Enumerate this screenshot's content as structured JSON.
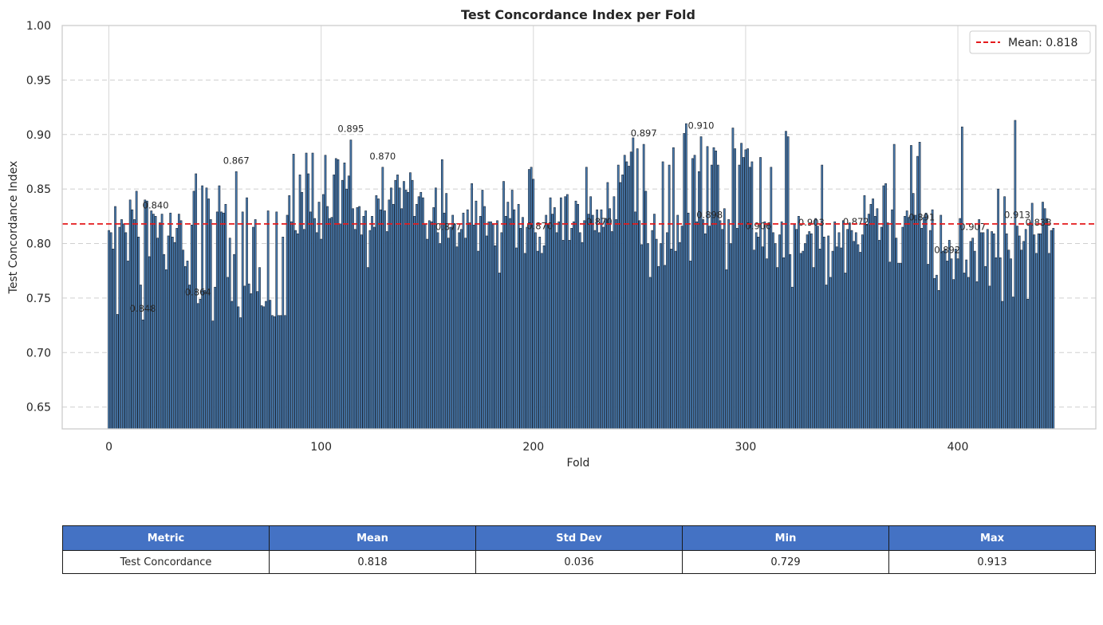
{
  "chart_data": {
    "type": "bar",
    "title": "Test Concordance Index per Fold",
    "xlabel": "Fold",
    "ylabel": "Test Concordance Index",
    "xlim": [
      -22,
      465
    ],
    "ylim": [
      0.63,
      1.0
    ],
    "xticks": [
      0,
      100,
      200,
      300,
      400
    ],
    "yticks": [
      0.65,
      0.7,
      0.75,
      0.8,
      0.85,
      0.9,
      0.95,
      1.0
    ],
    "grid": true,
    "legend_position": "top-right",
    "bar_color": "#4a7fb5",
    "bar_edge_color": "#1a2433",
    "mean_line": {
      "value": 0.818,
      "label": "Mean: 0.818",
      "color": "#e41a1c",
      "style": "dashed"
    },
    "folds": 442,
    "values": [
      0.812,
      0.81,
      0.795,
      0.834,
      0.735,
      0.815,
      0.822,
      0.818,
      0.81,
      0.784,
      0.84,
      0.831,
      0.822,
      0.848,
      0.806,
      0.762,
      0.73,
      0.84,
      0.839,
      0.788,
      0.83,
      0.827,
      0.825,
      0.805,
      0.819,
      0.827,
      0.79,
      0.776,
      0.807,
      0.828,
      0.806,
      0.801,
      0.814,
      0.827,
      0.821,
      0.794,
      0.779,
      0.784,
      0.762,
      0.817,
      0.848,
      0.864,
      0.745,
      0.749,
      0.853,
      0.757,
      0.851,
      0.841,
      0.822,
      0.729,
      0.76,
      0.829,
      0.853,
      0.829,
      0.828,
      0.836,
      0.769,
      0.805,
      0.747,
      0.79,
      0.866,
      0.742,
      0.732,
      0.829,
      0.761,
      0.842,
      0.763,
      0.754,
      0.815,
      0.822,
      0.756,
      0.778,
      0.743,
      0.742,
      0.747,
      0.83,
      0.748,
      0.734,
      0.733,
      0.829,
      0.734,
      0.734,
      0.806,
      0.734,
      0.826,
      0.844,
      0.82,
      0.882,
      0.812,
      0.809,
      0.863,
      0.847,
      0.813,
      0.883,
      0.864,
      0.829,
      0.883,
      0.823,
      0.81,
      0.838,
      0.804,
      0.845,
      0.881,
      0.834,
      0.823,
      0.824,
      0.863,
      0.878,
      0.877,
      0.818,
      0.858,
      0.874,
      0.85,
      0.862,
      0.895,
      0.832,
      0.813,
      0.833,
      0.834,
      0.808,
      0.825,
      0.83,
      0.778,
      0.812,
      0.825,
      0.815,
      0.844,
      0.841,
      0.831,
      0.87,
      0.83,
      0.811,
      0.84,
      0.851,
      0.836,
      0.858,
      0.863,
      0.851,
      0.832,
      0.857,
      0.849,
      0.847,
      0.865,
      0.858,
      0.825,
      0.836,
      0.843,
      0.847,
      0.842,
      0.818,
      0.804,
      0.821,
      0.82,
      0.833,
      0.851,
      0.81,
      0.8,
      0.877,
      0.828,
      0.846,
      0.805,
      0.815,
      0.826,
      0.818,
      0.797,
      0.81,
      0.813,
      0.828,
      0.805,
      0.831,
      0.819,
      0.855,
      0.817,
      0.839,
      0.793,
      0.825,
      0.849,
      0.834,
      0.807,
      0.82,
      0.82,
      0.818,
      0.798,
      0.821,
      0.773,
      0.81,
      0.857,
      0.825,
      0.838,
      0.823,
      0.849,
      0.831,
      0.796,
      0.836,
      0.814,
      0.824,
      0.791,
      0.815,
      0.868,
      0.87,
      0.859,
      0.81,
      0.793,
      0.806,
      0.791,
      0.798,
      0.826,
      0.818,
      0.842,
      0.827,
      0.833,
      0.81,
      0.82,
      0.842,
      0.803,
      0.843,
      0.845,
      0.803,
      0.814,
      0.82,
      0.839,
      0.836,
      0.81,
      0.801,
      0.821,
      0.87,
      0.827,
      0.843,
      0.826,
      0.812,
      0.831,
      0.81,
      0.831,
      0.815,
      0.823,
      0.856,
      0.832,
      0.811,
      0.843,
      0.822,
      0.872,
      0.856,
      0.863,
      0.881,
      0.875,
      0.871,
      0.884,
      0.897,
      0.829,
      0.887,
      0.821,
      0.799,
      0.891,
      0.848,
      0.8,
      0.769,
      0.812,
      0.827,
      0.804,
      0.779,
      0.8,
      0.875,
      0.78,
      0.81,
      0.872,
      0.795,
      0.888,
      0.793,
      0.826,
      0.801,
      0.816,
      0.901,
      0.91,
      0.828,
      0.784,
      0.878,
      0.881,
      0.82,
      0.866,
      0.898,
      0.822,
      0.809,
      0.889,
      0.816,
      0.872,
      0.888,
      0.885,
      0.872,
      0.821,
      0.813,
      0.832,
      0.776,
      0.822,
      0.8,
      0.906,
      0.887,
      0.814,
      0.872,
      0.892,
      0.879,
      0.886,
      0.887,
      0.87,
      0.875,
      0.794,
      0.81,
      0.806,
      0.879,
      0.797,
      0.82,
      0.786,
      0.818,
      0.87,
      0.81,
      0.8,
      0.778,
      0.808,
      0.82,
      0.787,
      0.903,
      0.898,
      0.79,
      0.76,
      0.818,
      0.813,
      0.825,
      0.791,
      0.793,
      0.8,
      0.808,
      0.811,
      0.809,
      0.778,
      0.823,
      0.816,
      0.795,
      0.872,
      0.806,
      0.762,
      0.807,
      0.769,
      0.793,
      0.82,
      0.797,
      0.81,
      0.796,
      0.821,
      0.773,
      0.813,
      0.819,
      0.812,
      0.802,
      0.81,
      0.799,
      0.792,
      0.808,
      0.844,
      0.817,
      0.827,
      0.836,
      0.841,
      0.825,
      0.832,
      0.803,
      0.815,
      0.853,
      0.855,
      0.819,
      0.783,
      0.831,
      0.891,
      0.805,
      0.782,
      0.782,
      0.815,
      0.825,
      0.83,
      0.824,
      0.89,
      0.846,
      0.826,
      0.88,
      0.893,
      0.814,
      0.824,
      0.828,
      0.781,
      0.812,
      0.831,
      0.768,
      0.771,
      0.757,
      0.826,
      0.793,
      0.795,
      0.784,
      0.803,
      0.786,
      0.767,
      0.795,
      0.786,
      0.823,
      0.907,
      0.773,
      0.785,
      0.769,
      0.802,
      0.805,
      0.793,
      0.765,
      0.822,
      0.81,
      0.81,
      0.779,
      0.813,
      0.761,
      0.811,
      0.809,
      0.787,
      0.85,
      0.787,
      0.747,
      0.843,
      0.809,
      0.794,
      0.786,
      0.751,
      0.913,
      0.816,
      0.807,
      0.794,
      0.802,
      0.813,
      0.749,
      0.819,
      0.837,
      0.808,
      0.791,
      0.809,
      0.809,
      0.838,
      0.832,
      0.823,
      0.791,
      0.812,
      0.814
    ],
    "labeled_bars": [
      {
        "fold": 16,
        "label": "0.848"
      },
      {
        "fold": 22,
        "label": "0.840"
      },
      {
        "fold": 42,
        "label": "0.864"
      },
      {
        "fold": 60,
        "label": "0.867"
      },
      {
        "fold": 114,
        "label": "0.895"
      },
      {
        "fold": 129,
        "label": "0.870"
      },
      {
        "fold": 160,
        "label": "0.877"
      },
      {
        "fold": 203,
        "label": "0.870"
      },
      {
        "fold": 231,
        "label": "0.870"
      },
      {
        "fold": 252,
        "label": "0.897"
      },
      {
        "fold": 279,
        "label": "0.910"
      },
      {
        "fold": 283,
        "label": "0.898"
      },
      {
        "fold": 306,
        "label": "0.906"
      },
      {
        "fold": 331,
        "label": "0.903"
      },
      {
        "fold": 352,
        "label": "0.872"
      },
      {
        "fold": 383,
        "label": "0.891"
      },
      {
        "fold": 395,
        "label": "0.892"
      },
      {
        "fold": 407,
        "label": "0.907"
      },
      {
        "fold": 428,
        "label": "0.913"
      },
      {
        "fold": 438,
        "label": "0.838"
      }
    ]
  },
  "summary_table": {
    "headers": [
      "Metric",
      "Mean",
      "Std Dev",
      "Min",
      "Max"
    ],
    "rows": [
      [
        "Test Concordance",
        "0.818",
        "0.036",
        "0.729",
        "0.913"
      ]
    ]
  }
}
